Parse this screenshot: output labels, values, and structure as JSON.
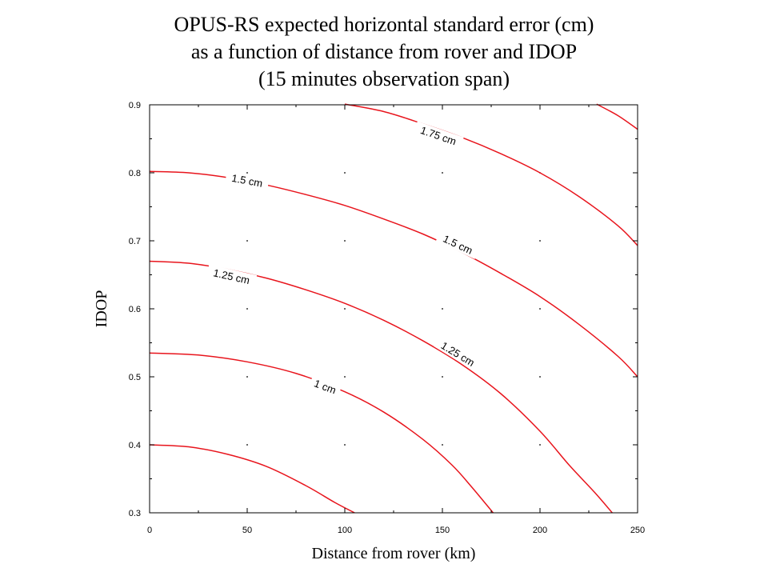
{
  "chart_data": {
    "type": "line",
    "title_lines": [
      "OPUS-RS expected horizontal standard error (cm)",
      "as a function of distance from rover and IDOP",
      "(15 minutes observation span)"
    ],
    "xlabel": "Distance from rover (km)",
    "ylabel": "IDOP",
    "xlim": [
      0,
      250
    ],
    "ylim": [
      0.3,
      0.9
    ],
    "xticks": [
      0,
      50,
      100,
      150,
      200,
      250
    ],
    "yticks": [
      0.3,
      0.4,
      0.5,
      0.6,
      0.7,
      0.8,
      0.9
    ],
    "grid": "dots",
    "line_color": "#e8141c",
    "series": [
      {
        "label": "",
        "points": [
          [
            0,
            0.4
          ],
          [
            20,
            0.397
          ],
          [
            40,
            0.386
          ],
          [
            60,
            0.368
          ],
          [
            80,
            0.34
          ],
          [
            95,
            0.315
          ],
          [
            105,
            0.3
          ]
        ]
      },
      {
        "label": "1 cm",
        "label_at": [
          90,
          0.486
        ],
        "points": [
          [
            0,
            0.535
          ],
          [
            25,
            0.532
          ],
          [
            50,
            0.522
          ],
          [
            75,
            0.505
          ],
          [
            100,
            0.478
          ],
          [
            120,
            0.448
          ],
          [
            140,
            0.408
          ],
          [
            155,
            0.37
          ],
          [
            165,
            0.338
          ],
          [
            176,
            0.3
          ]
        ]
      },
      {
        "label": "1.25 cm",
        "label_at": [
          42,
          0.648
        ],
        "label2": "1.25 cm",
        "label2_at": [
          158,
          0.534
        ],
        "points": [
          [
            0,
            0.67
          ],
          [
            20,
            0.667
          ],
          [
            40,
            0.658
          ],
          [
            60,
            0.645
          ],
          [
            80,
            0.628
          ],
          [
            100,
            0.608
          ],
          [
            120,
            0.583
          ],
          [
            140,
            0.553
          ],
          [
            160,
            0.518
          ],
          [
            180,
            0.475
          ],
          [
            200,
            0.42
          ],
          [
            215,
            0.37
          ],
          [
            228,
            0.33
          ],
          [
            237,
            0.3
          ]
        ]
      },
      {
        "label": "1.5 cm",
        "label_at": [
          50,
          0.789
        ],
        "label2": "1.5 cm",
        "label2_at": [
          158,
          0.695
        ],
        "points": [
          [
            0,
            0.802
          ],
          [
            20,
            0.8
          ],
          [
            40,
            0.793
          ],
          [
            60,
            0.782
          ],
          [
            80,
            0.768
          ],
          [
            100,
            0.752
          ],
          [
            120,
            0.732
          ],
          [
            140,
            0.71
          ],
          [
            160,
            0.683
          ],
          [
            180,
            0.652
          ],
          [
            200,
            0.618
          ],
          [
            220,
            0.577
          ],
          [
            240,
            0.53
          ],
          [
            250,
            0.5
          ]
        ]
      },
      {
        "label": "1.75 cm",
        "label_at": [
          148,
          0.855
        ],
        "points": [
          [
            100,
            0.901
          ],
          [
            120,
            0.89
          ],
          [
            140,
            0.872
          ],
          [
            160,
            0.852
          ],
          [
            180,
            0.828
          ],
          [
            200,
            0.8
          ],
          [
            220,
            0.765
          ],
          [
            240,
            0.722
          ],
          [
            250,
            0.693
          ]
        ]
      },
      {
        "label": "",
        "points": [
          [
            229,
            0.901
          ],
          [
            240,
            0.884
          ],
          [
            250,
            0.864
          ]
        ]
      }
    ]
  }
}
